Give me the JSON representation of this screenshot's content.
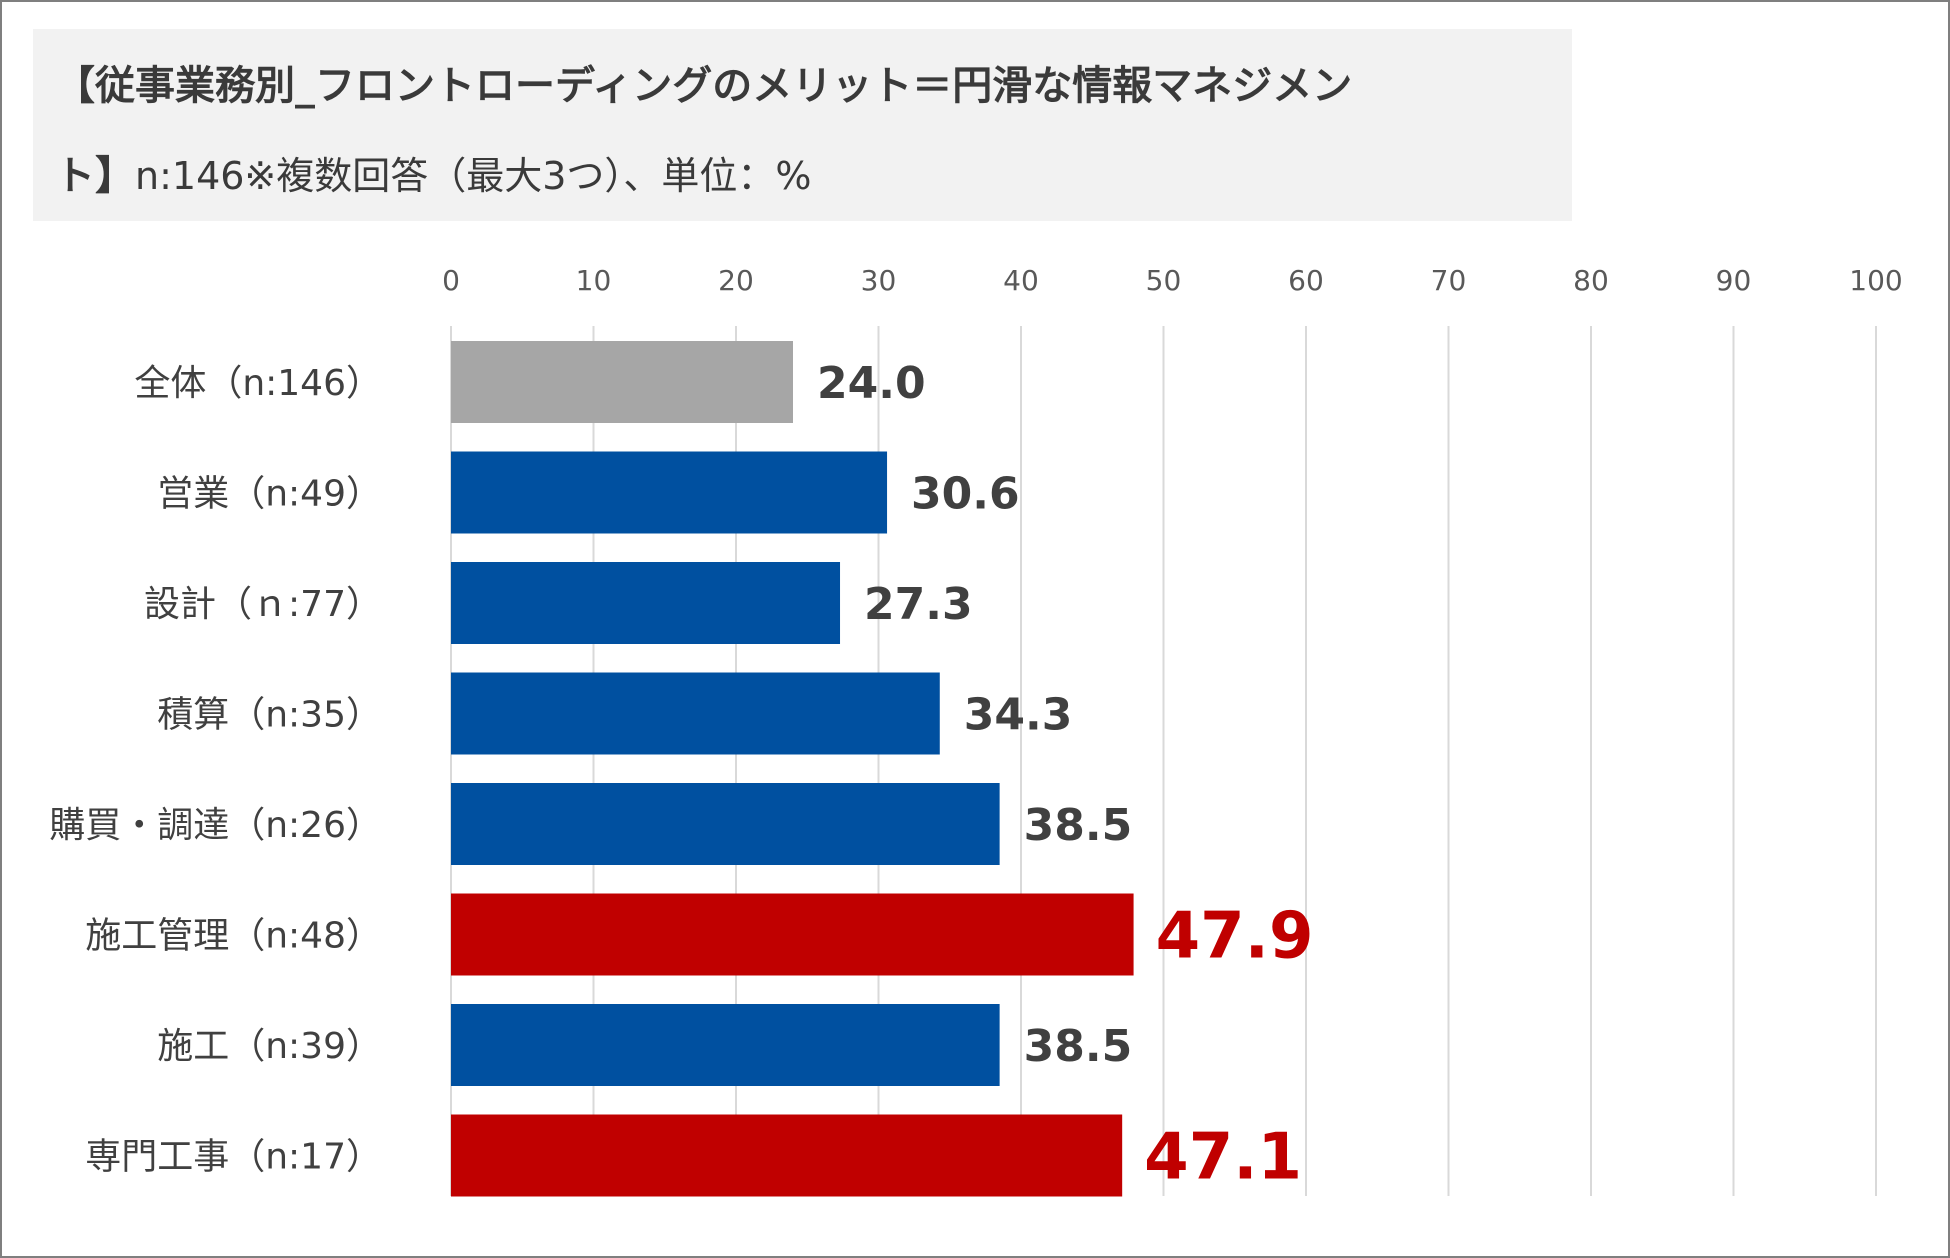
{
  "title": {
    "line1": "【従事業務別_フロントローディングのメリット＝円滑な情報マネジメン",
    "line2_bold": "ト】",
    "line2_rest": "n:146※複数回答（最大3つ）、単位：%"
  },
  "chart_data": {
    "type": "bar",
    "orientation": "horizontal",
    "categories": [
      "全体（n:146）",
      "営業（n:49）",
      "設計（ｎ:77）",
      "積算（n:35）",
      "購買・調達（n:26）",
      "施工管理（n:48）",
      "施工（n:39）",
      "専門工事（n:17）"
    ],
    "values": [
      24.0,
      30.6,
      27.3,
      34.3,
      38.5,
      47.9,
      38.5,
      47.1
    ],
    "value_labels": [
      "24.0",
      "30.6",
      "27.3",
      "34.3",
      "38.5",
      "47.9",
      "38.5",
      "47.1"
    ],
    "xlim": [
      0,
      100
    ],
    "xticks": [
      0,
      10,
      20,
      30,
      40,
      50,
      60,
      70,
      80,
      90,
      100
    ],
    "x_axis_position": "top",
    "grid": true,
    "colors": {
      "overall": "#a6a6a6",
      "default": "#0050a0",
      "highlight": "#c00000",
      "label_default": "#404040",
      "label_highlight": "#c00000"
    },
    "highlight_indices": [
      5,
      7
    ]
  }
}
